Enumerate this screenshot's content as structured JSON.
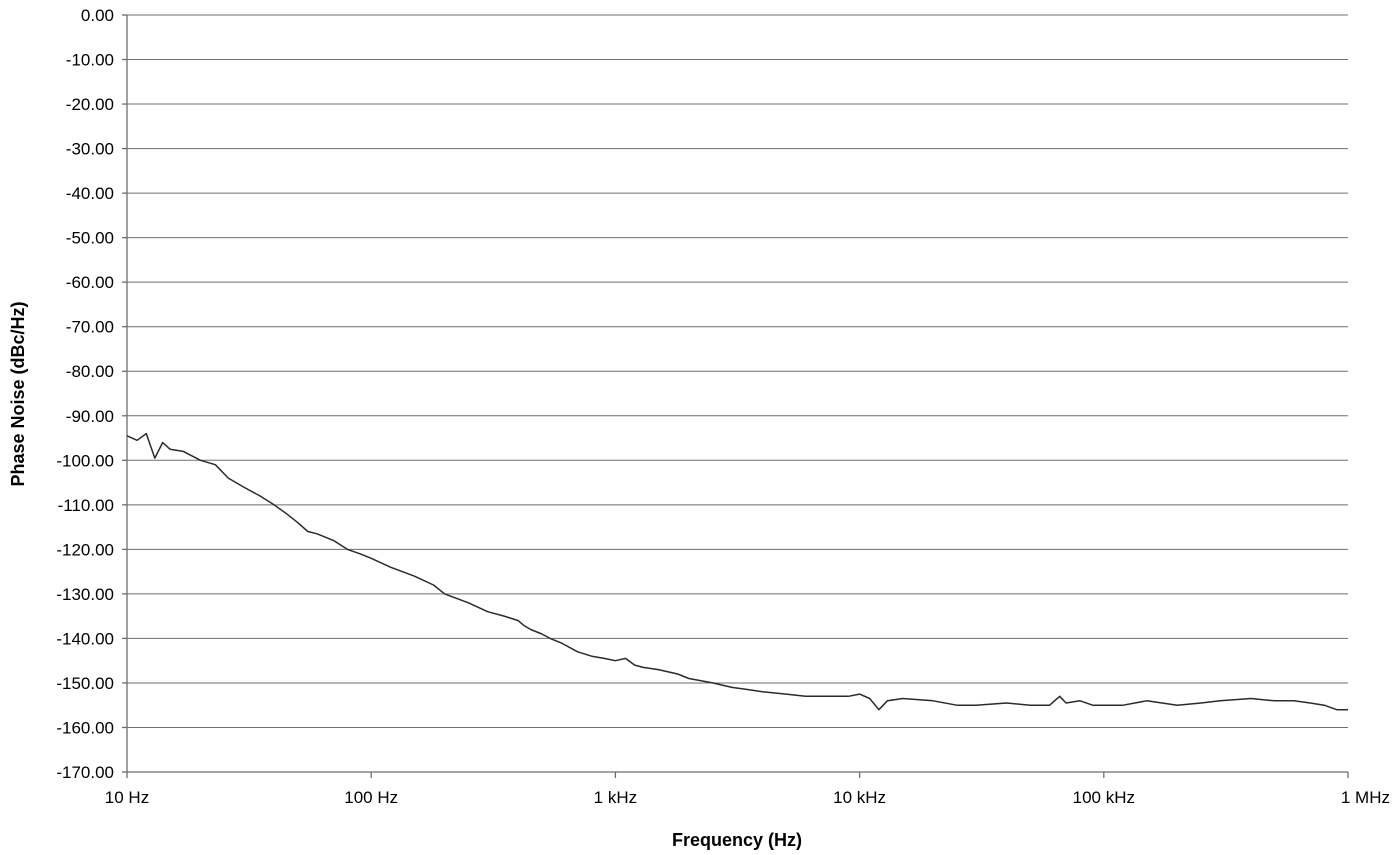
{
  "chart_data": {
    "type": "line",
    "title": "",
    "xlabel": "Frequency (Hz)",
    "ylabel": "Phase Noise (dBc/Hz)",
    "x_scale": "log",
    "xlim": [
      10,
      1000000
    ],
    "ylim": [
      -170,
      0
    ],
    "grid": {
      "horizontal": true,
      "vertical": false
    },
    "legend": "none",
    "x_ticks": [
      {
        "value": 10,
        "label": "10 Hz"
      },
      {
        "value": 100,
        "label": "100 Hz"
      },
      {
        "value": 1000,
        "label": "1 kHz"
      },
      {
        "value": 10000,
        "label": "10 kHz"
      },
      {
        "value": 100000,
        "label": "100 kHz"
      },
      {
        "value": 1000000,
        "label": "1 MHz"
      }
    ],
    "y_ticks": [
      {
        "value": 0,
        "label": "0.00"
      },
      {
        "value": -10,
        "label": "-10.00"
      },
      {
        "value": -20,
        "label": "-20.00"
      },
      {
        "value": -30,
        "label": "-30.00"
      },
      {
        "value": -40,
        "label": "-40.00"
      },
      {
        "value": -50,
        "label": "-50.00"
      },
      {
        "value": -60,
        "label": "-60.00"
      },
      {
        "value": -70,
        "label": "-70.00"
      },
      {
        "value": -80,
        "label": "-80.00"
      },
      {
        "value": -90,
        "label": "-90.00"
      },
      {
        "value": -100,
        "label": "-100.00"
      },
      {
        "value": -110,
        "label": "-110.00"
      },
      {
        "value": -120,
        "label": "-120.00"
      },
      {
        "value": -130,
        "label": "-130.00"
      },
      {
        "value": -140,
        "label": "-140.00"
      },
      {
        "value": -150,
        "label": "-150.00"
      },
      {
        "value": -160,
        "label": "-160.00"
      },
      {
        "value": -170,
        "label": "-170.00"
      }
    ],
    "series": [
      {
        "color": "#2b2b2b",
        "x": [
          10,
          11,
          12,
          13,
          14,
          15,
          17,
          20,
          23,
          26,
          30,
          35,
          40,
          45,
          50,
          55,
          60,
          70,
          80,
          90,
          100,
          120,
          150,
          180,
          200,
          250,
          300,
          350,
          400,
          420,
          450,
          500,
          540,
          600,
          700,
          800,
          900,
          1000,
          1100,
          1200,
          1300,
          1500,
          1800,
          2000,
          2500,
          3000,
          3500,
          4000,
          5000,
          6000,
          7000,
          8000,
          9000,
          10000,
          11000,
          12000,
          13000,
          15000,
          20000,
          25000,
          30000,
          40000,
          50000,
          60000,
          66000,
          70000,
          80000,
          90000,
          100000,
          120000,
          150000,
          200000,
          250000,
          300000,
          400000,
          500000,
          600000,
          700000,
          800000,
          900000,
          1000000
        ],
        "y": [
          -94.5,
          -95.5,
          -94,
          -99.5,
          -96,
          -97.5,
          -98,
          -100,
          -101,
          -104,
          -106,
          -108,
          -110,
          -112,
          -114,
          -116,
          -116.5,
          -118,
          -120,
          -121,
          -122,
          -124,
          -126,
          -128,
          -130,
          -132,
          -134,
          -135,
          -136,
          -137,
          -138,
          -139,
          -140,
          -141,
          -143,
          -144,
          -144.5,
          -145,
          -144.5,
          -146,
          -146.5,
          -147,
          -148,
          -149,
          -150,
          -151,
          -151.5,
          -152,
          -152.5,
          -153,
          -153,
          -153,
          -153,
          -152.5,
          -153.5,
          -156,
          -154,
          -153.5,
          -154,
          -155,
          -155,
          -154.5,
          -155,
          -155,
          -153,
          -154.5,
          -154,
          -155,
          -155,
          -155,
          -154,
          -155,
          -154.5,
          -154,
          -153.5,
          -154,
          -154,
          -154.5,
          -155,
          -156,
          -156
        ]
      }
    ]
  }
}
